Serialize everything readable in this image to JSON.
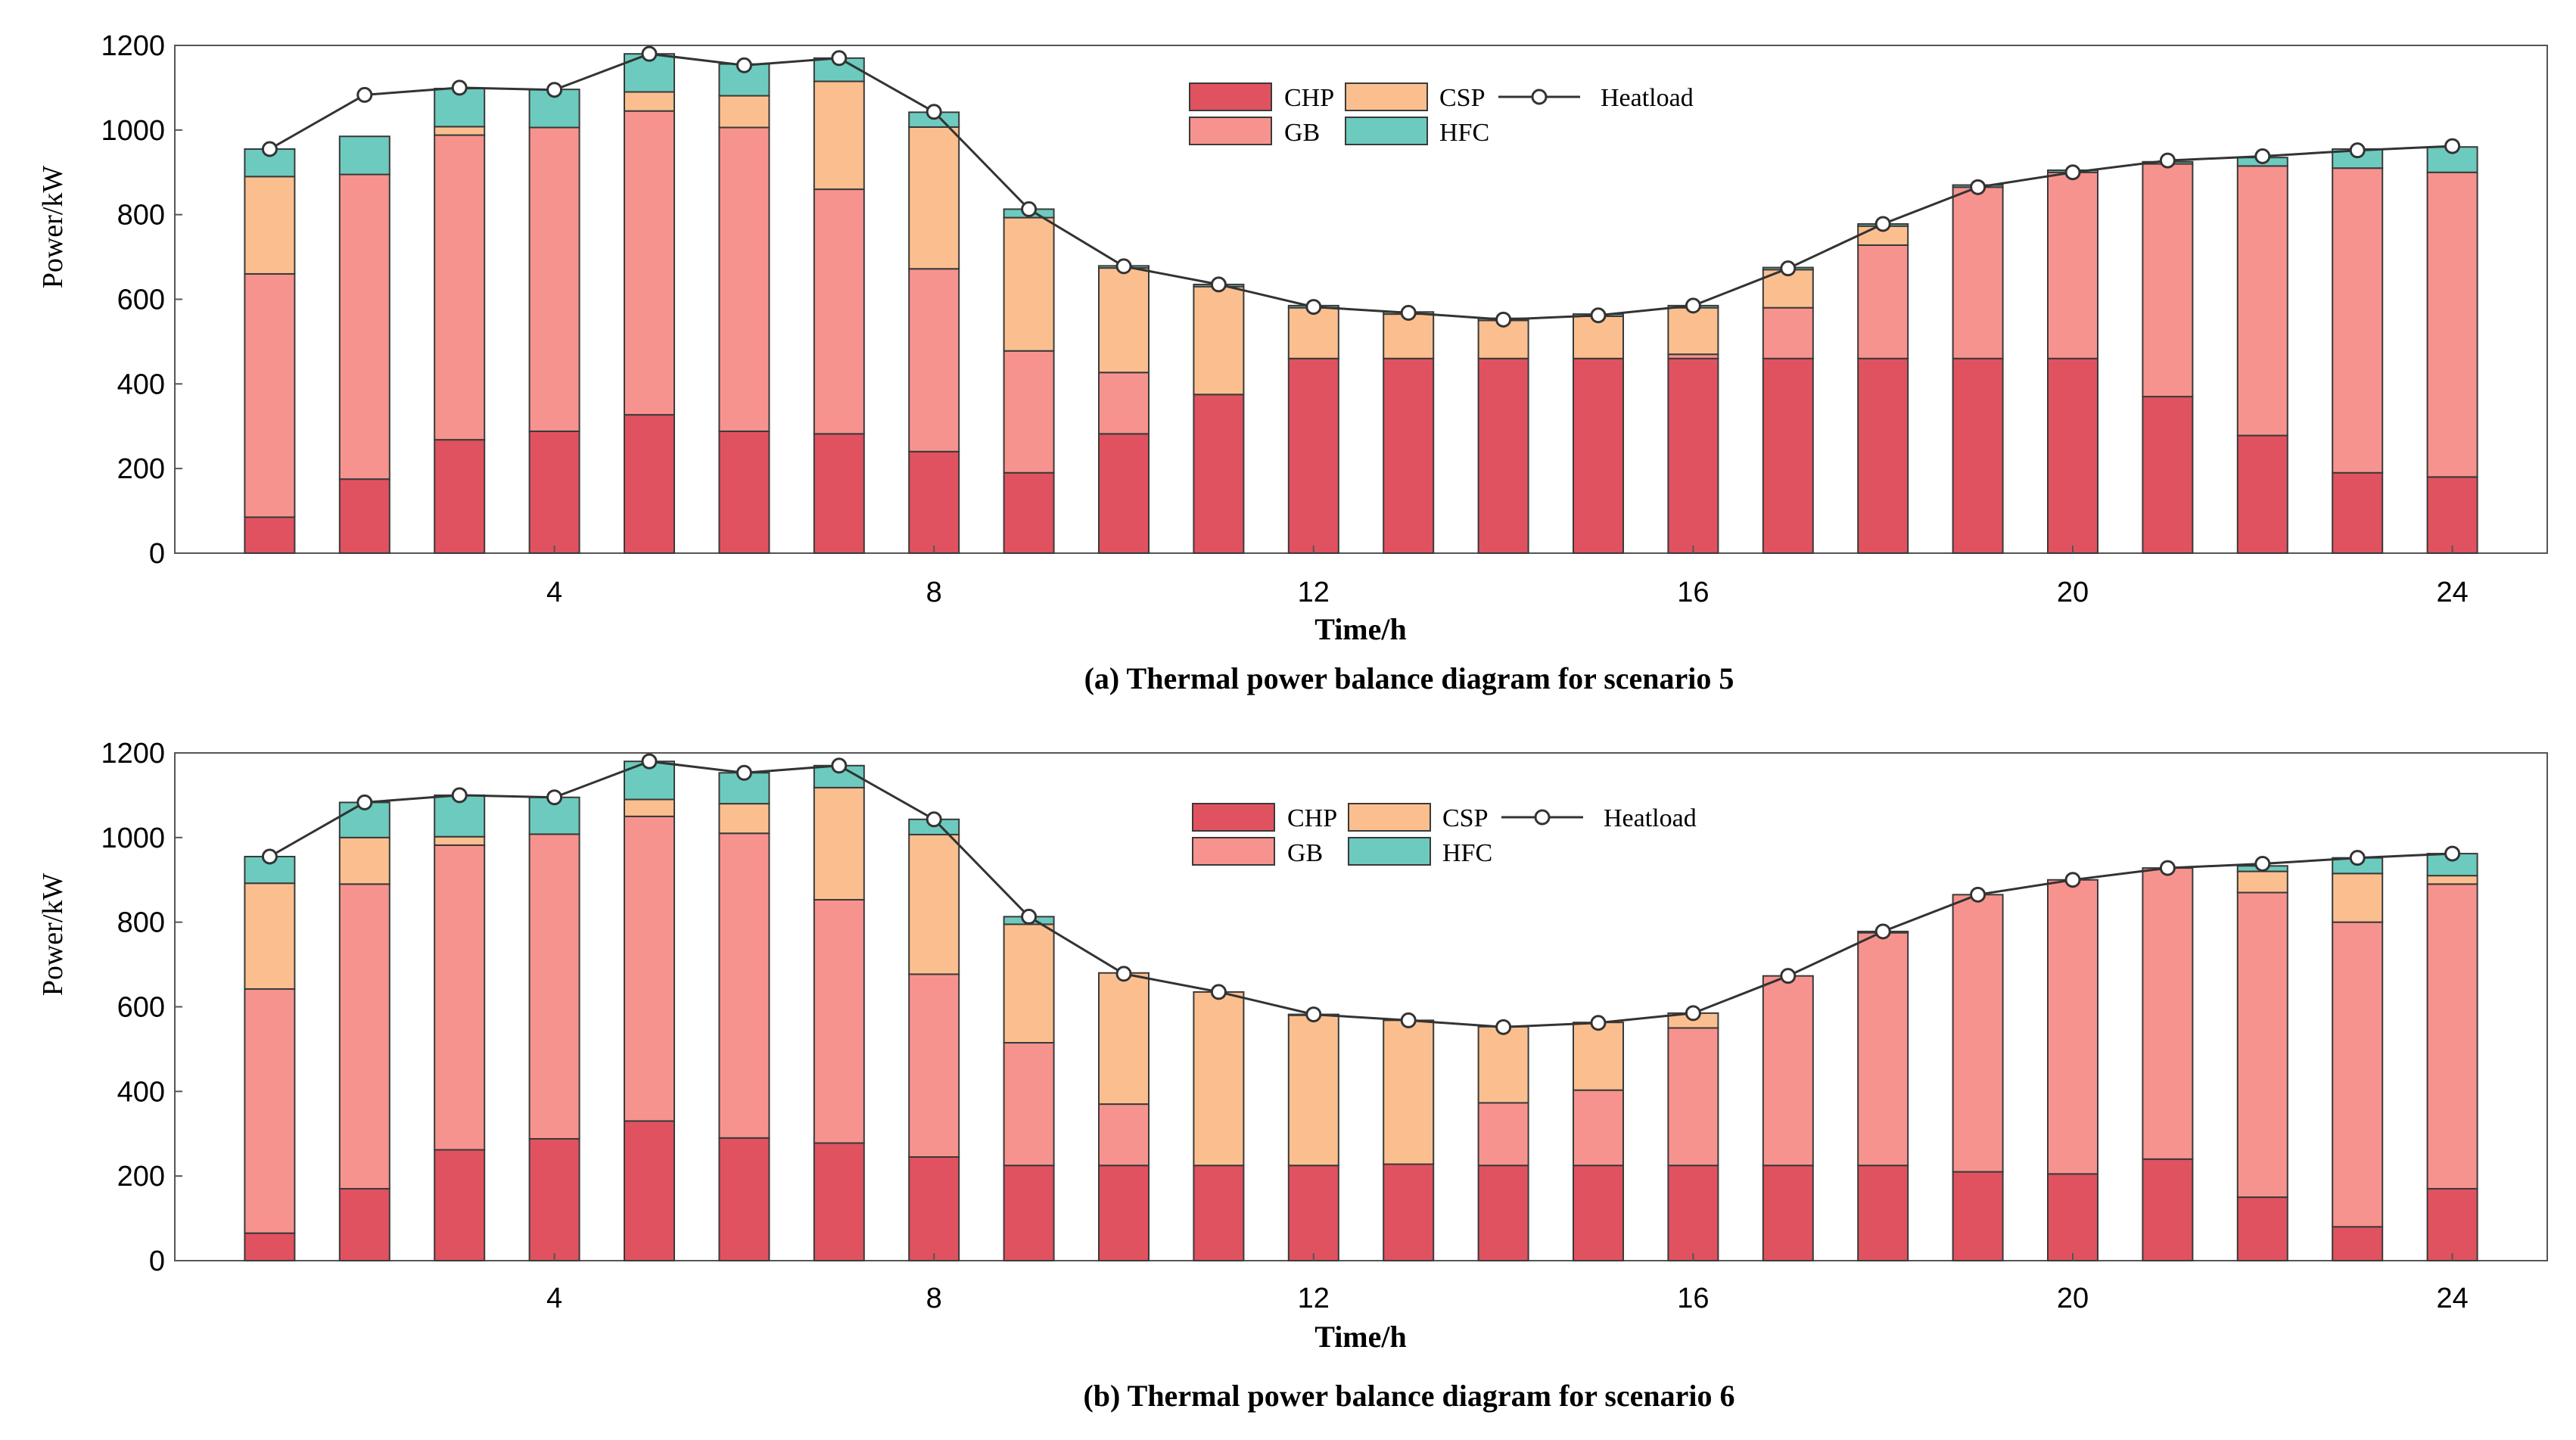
{
  "colors": {
    "CHP": "#e0525f",
    "GB": "#f7938e",
    "CSP": "#fbbf8f",
    "HFC": "#6ccbbe",
    "heat_line": "#333333",
    "bar_edge": "#3a3a3a"
  },
  "chart_data": [
    {
      "type": "bar",
      "stacked": true,
      "title": "(a) Thermal power balance diagram for scenario 5",
      "xlabel": "Time/h",
      "ylabel": "Power/kW",
      "ylim": [
        0,
        1200
      ],
      "xlim": [
        0,
        25
      ],
      "yticks": [
        "0",
        "200",
        "400",
        "600",
        "800",
        "1000",
        "1200"
      ],
      "yticks_values": [
        0,
        200,
        400,
        600,
        800,
        1000,
        1200
      ],
      "xticks": [
        "4",
        "8",
        "12",
        "16",
        "20",
        "24"
      ],
      "xticks_values": [
        4,
        8,
        12,
        16,
        20,
        24
      ],
      "legend": [
        "CHP",
        "CSP",
        "Heatload",
        "GB",
        "HFC"
      ],
      "legend_position": "top-center",
      "x": [
        1,
        2,
        3,
        4,
        5,
        6,
        7,
        8,
        9,
        10,
        11,
        12,
        13,
        14,
        15,
        16,
        17,
        18,
        19,
        20,
        21,
        22,
        23,
        24
      ],
      "series": [
        {
          "name": "CHP",
          "values": [
            85,
            175,
            268,
            288,
            327,
            288,
            282,
            240,
            190,
            282,
            375,
            460,
            460,
            460,
            460,
            460,
            460,
            460,
            460,
            460,
            370,
            278,
            190,
            180
          ]
        },
        {
          "name": "GB",
          "values": [
            575,
            720,
            720,
            718,
            718,
            718,
            578,
            432,
            288,
            145,
            0,
            0,
            0,
            0,
            0,
            10,
            120,
            268,
            405,
            440,
            550,
            637,
            720,
            720
          ]
        },
        {
          "name": "CSP",
          "values": [
            230,
            0,
            20,
            0,
            45,
            75,
            255,
            335,
            315,
            247,
            255,
            120,
            105,
            90,
            100,
            110,
            90,
            45,
            0,
            0,
            0,
            0,
            0,
            0
          ]
        },
        {
          "name": "HFC",
          "values": [
            65,
            90,
            90,
            90,
            90,
            75,
            55,
            35,
            20,
            5,
            5,
            5,
            5,
            5,
            5,
            5,
            5,
            5,
            5,
            5,
            5,
            20,
            45,
            60
          ]
        }
      ],
      "heatload": [
        955,
        1083,
        1100,
        1095,
        1180,
        1153,
        1170,
        1043,
        813,
        678,
        635,
        582,
        568,
        552,
        562,
        585,
        673,
        778,
        865,
        900,
        928,
        938,
        952,
        962
      ]
    },
    {
      "type": "bar",
      "stacked": true,
      "title": "(b) Thermal power balance diagram for scenario 6",
      "xlabel": "Time/h",
      "ylabel": "Power/kW",
      "ylim": [
        0,
        1200
      ],
      "xlim": [
        0,
        25
      ],
      "yticks": [
        "0",
        "200",
        "400",
        "600",
        "800",
        "1000",
        "1200"
      ],
      "yticks_values": [
        0,
        200,
        400,
        600,
        800,
        1000,
        1200
      ],
      "xticks": [
        "4",
        "8",
        "12",
        "16",
        "20",
        "24"
      ],
      "xticks_values": [
        4,
        8,
        12,
        16,
        20,
        24
      ],
      "legend": [
        "CHP",
        "CSP",
        "Heatload",
        "GB",
        "HFC"
      ],
      "legend_position": "top-center",
      "x": [
        1,
        2,
        3,
        4,
        5,
        6,
        7,
        8,
        9,
        10,
        11,
        12,
        13,
        14,
        15,
        16,
        17,
        18,
        19,
        20,
        21,
        22,
        23,
        24
      ],
      "series": [
        {
          "name": "CHP",
          "values": [
            65,
            170,
            262,
            288,
            330,
            290,
            278,
            245,
            225,
            225,
            225,
            225,
            228,
            225,
            225,
            225,
            225,
            225,
            210,
            205,
            240,
            150,
            80,
            170
          ]
        },
        {
          "name": "GB",
          "values": [
            577,
            720,
            720,
            720,
            720,
            720,
            575,
            432,
            290,
            145,
            0,
            0,
            0,
            148,
            178,
            325,
            448,
            550,
            655,
            695,
            688,
            720,
            720,
            720
          ]
        },
        {
          "name": "CSP",
          "values": [
            250,
            110,
            20,
            0,
            40,
            70,
            265,
            330,
            280,
            310,
            410,
            355,
            340,
            180,
            160,
            35,
            0,
            0,
            0,
            0,
            0,
            50,
            115,
            20
          ]
        },
        {
          "name": "HFC",
          "values": [
            63,
            83,
            98,
            87,
            90,
            73,
            52,
            36,
            18,
            0,
            0,
            2,
            0,
            0,
            0,
            0,
            0,
            3,
            0,
            0,
            0,
            13,
            37,
            52
          ]
        }
      ],
      "heatload": [
        955,
        1083,
        1100,
        1095,
        1180,
        1153,
        1170,
        1043,
        813,
        678,
        635,
        582,
        568,
        552,
        562,
        585,
        673,
        778,
        865,
        900,
        928,
        938,
        952,
        962
      ]
    }
  ]
}
